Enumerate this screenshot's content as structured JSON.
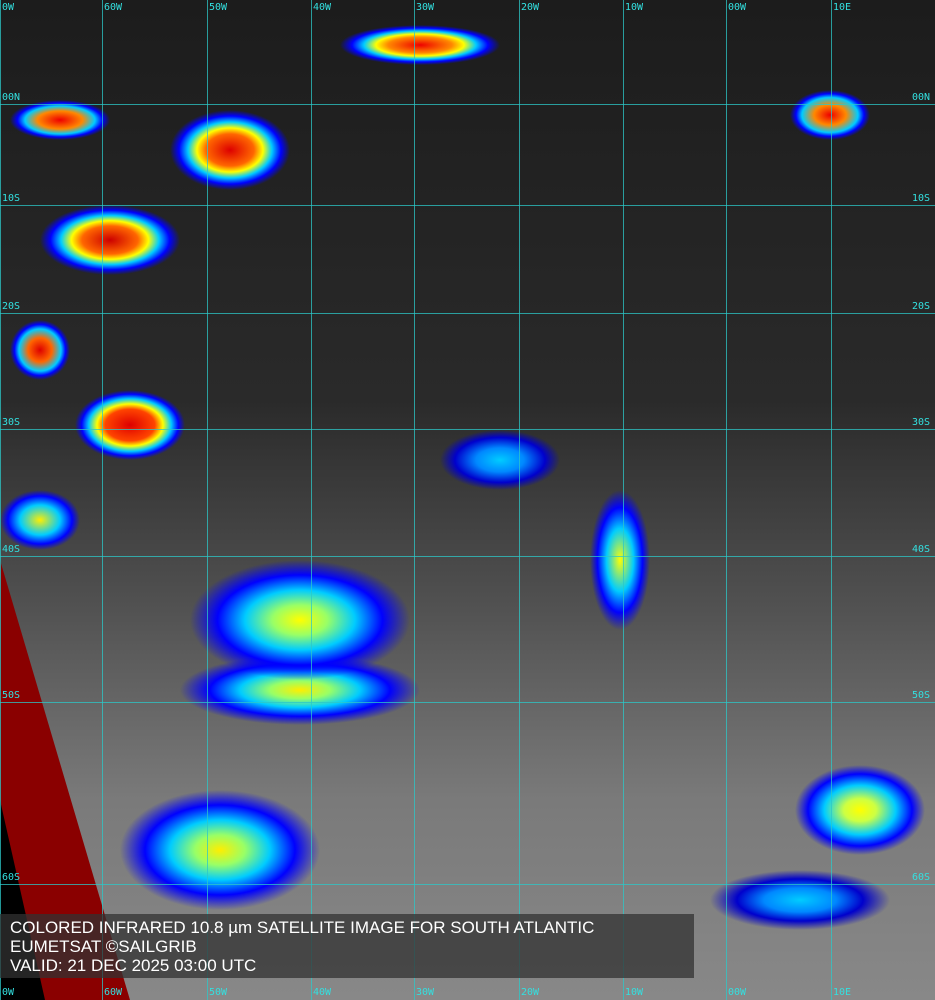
{
  "caption": {
    "line1": "COLORED INFRARED 10.8 µm SATELLITE IMAGE FOR SOUTH ATLANTIC",
    "line2": "EUMETSAT ©SAILGRIB",
    "line3": "VALID:  21 DEC 2025 03:00 UTC"
  },
  "longitudes": [
    "0W",
    "60W",
    "50W",
    "40W",
    "30W",
    "20W",
    "10W",
    "00W",
    "10E"
  ],
  "latitudes": [
    "00N",
    "10S",
    "20S",
    "30S",
    "40S",
    "50S",
    "60S"
  ],
  "colors": {
    "grid": "#2cc8c8",
    "cold_cloud": "#d00000",
    "mid_cloud": "#ffff00",
    "warm_cloud": "#0000ff"
  }
}
